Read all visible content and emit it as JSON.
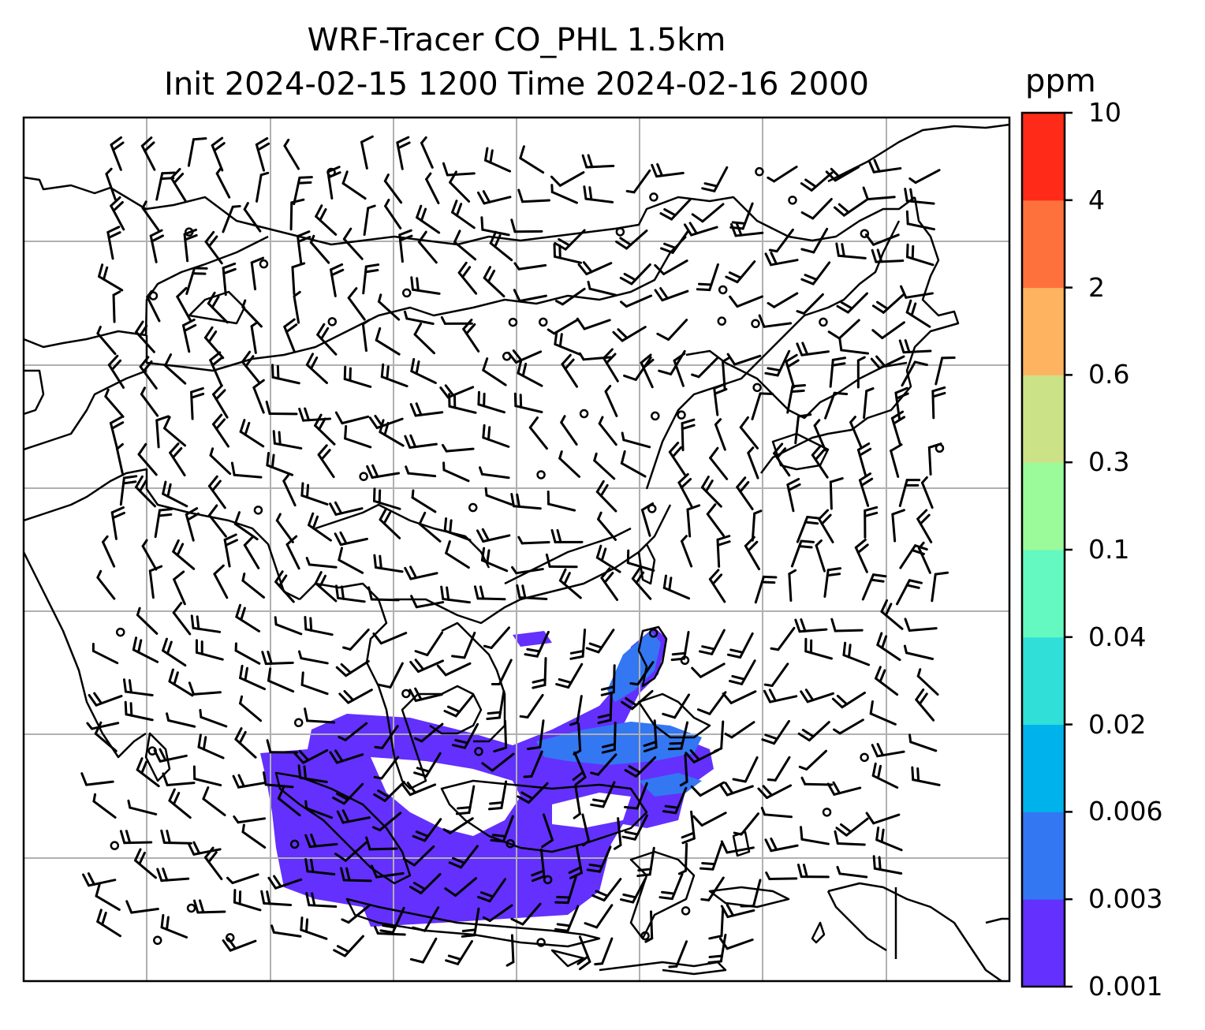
{
  "title": {
    "line1": "WRF-Tracer CO_PHL 1.5km",
    "line2": "Init 2024-02-15 1200 Time 2024-02-16 2000"
  },
  "colorbar": {
    "unit": "ppm",
    "levels": [
      "0.001",
      "0.003",
      "0.006",
      "0.02",
      "0.04",
      "0.1",
      "0.3",
      "0.6",
      "2",
      "4",
      "10"
    ],
    "colors": [
      "#6330fd",
      "#3377f2",
      "#00b2ec",
      "#2fdfd8",
      "#64f9c0",
      "#9bfa9a",
      "#cbe286",
      "#fdb360",
      "#ff713c",
      "#ff2a18"
    ]
  },
  "map": {
    "coastline_color": "#000000",
    "gridline_color": "#b0b0b0",
    "barb_color": "#000000",
    "plume_color": "#6330fd",
    "plume_core_color": "#3377f2"
  }
}
